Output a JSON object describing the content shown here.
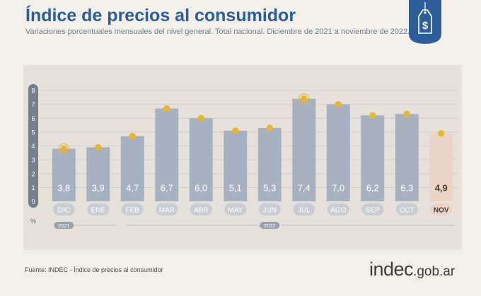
{
  "header": {
    "title": "Índice de precios al consumidor",
    "subtitle": "Variaciones porcentuales mensuales del nivel general. Total nacional. Diciembre de 2021 a noviembre de 2022."
  },
  "badge": {
    "icon": "price-tag-dollar-icon",
    "color": "#2c5f99",
    "symbol": "$"
  },
  "chart_data": {
    "type": "bar",
    "categories": [
      "DIC",
      "ENE",
      "FEB",
      "MAR",
      "ABR",
      "MAY",
      "JUN",
      "JUL",
      "AGO",
      "SEP",
      "OCT",
      "NOV"
    ],
    "values": [
      3.8,
      3.9,
      4.7,
      6.7,
      6.0,
      5.1,
      5.3,
      7.4,
      7.0,
      6.2,
      6.3,
      4.9
    ],
    "value_labels": [
      "3,8",
      "3,9",
      "4,7",
      "6,7",
      "6,0",
      "5,1",
      "5,3",
      "7,4",
      "7,0",
      "6,2",
      "6,3",
      "4,9"
    ],
    "highlight_index": 11,
    "halo_indices": [
      0,
      7
    ],
    "ylim": [
      0,
      8
    ],
    "yticks": [
      0,
      1,
      2,
      3,
      4,
      5,
      6,
      7,
      8
    ],
    "ylabel": "%",
    "year_labels": [
      {
        "label": "2021",
        "index": 0
      },
      {
        "label": "2022",
        "index": 6
      }
    ],
    "grid": true,
    "colors": {
      "bar": "#a8b1c0",
      "highlight_bar": "#ecd3c4",
      "marker": "#e8b72e",
      "pill": "#c9ccd2",
      "highlight_pill": "#ecd3c4",
      "axis_pill": "#74808e"
    }
  },
  "footer": {
    "source": "Fuente: INDEC - Índice de precios al consumidor",
    "brand_main": "indec",
    "brand_suffix": ".gob.ar"
  }
}
